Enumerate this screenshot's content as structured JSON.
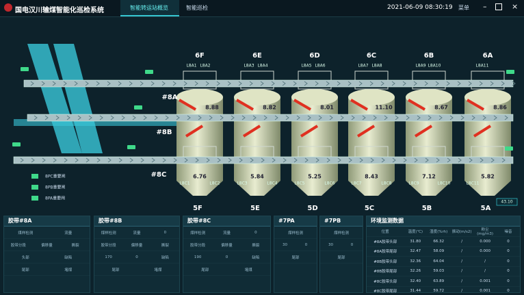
{
  "header": {
    "title": "国电汉川输煤智能化巡检系统",
    "tabs": [
      "智能转运站概览",
      "智能巡检"
    ],
    "datetime": "2021-06-09 08:30:19",
    "menu": "菜单"
  },
  "diagram": {
    "belts": [
      "#8A",
      "#8B",
      "#8C"
    ],
    "top_bins": [
      {
        "name": "6F",
        "labels": [
          "L8A1",
          "L8A2"
        ],
        "value": "8.88"
      },
      {
        "name": "6E",
        "labels": [
          "L8A3",
          "L8A4"
        ],
        "value": "8.82"
      },
      {
        "name": "6D",
        "labels": [
          "L8A5",
          "L8A6"
        ],
        "value": "8.01"
      },
      {
        "name": "6C",
        "labels": [
          "L8A7",
          "L8A8"
        ],
        "value": "11.10"
      },
      {
        "name": "6B",
        "labels": [
          "L8A9",
          "L8A10"
        ],
        "value": "8.67"
      },
      {
        "name": "6A",
        "labels": [
          "L8A11"
        ],
        "value": "8.86"
      }
    ],
    "bottom_bins": [
      {
        "name": "5F",
        "labels": [
          "L8C1",
          "L8C2"
        ],
        "value": "6.76"
      },
      {
        "name": "5E",
        "labels": [
          "L8C3",
          "L8C4"
        ],
        "value": "5.84"
      },
      {
        "name": "5D",
        "labels": [
          "L8C5",
          "L8C6"
        ],
        "value": "5.25"
      },
      {
        "name": "5C",
        "labels": [
          "L8C7",
          "L8C8"
        ],
        "value": "8.43"
      },
      {
        "name": "5B",
        "labels": [
          "L8C9",
          "L8C10"
        ],
        "value": "7.12"
      },
      {
        "name": "5A",
        "labels": [
          "L8C11"
        ],
        "value": "5.82"
      }
    ],
    "legend": [
      "8PC重要闸",
      "8PB重要闸",
      "8PA重要闸"
    ],
    "gauge": "43.10"
  },
  "panels": [
    {
      "title": "胶带#8A",
      "rows": [
        [
          "煤样检测",
          "流量"
        ],
        [
          "胶带分段",
          "偏移量",
          "撕裂"
        ],
        [
          "头部",
          "缺陷"
        ],
        [
          "尾部",
          "堵煤"
        ]
      ]
    },
    {
      "title": "胶带#8B",
      "rows": [
        [
          "煤样检测",
          "流量",
          "0"
        ],
        [
          "胶带分段",
          "偏移量",
          "撕裂"
        ],
        [
          "170",
          "0",
          "缺陷"
        ],
        [
          "尾部",
          "堵煤"
        ]
      ]
    },
    {
      "title": "胶带#8C",
      "rows": [
        [
          "煤样检测",
          "流量",
          "0"
        ],
        [
          "胶带分段",
          "偏移量",
          "撕裂"
        ],
        [
          "190",
          "0",
          "缺陷"
        ],
        [
          "尾部",
          "堵煤"
        ]
      ]
    },
    {
      "title": "#7PA",
      "rows": [
        [
          "煤样检测"
        ],
        [
          "30",
          "0"
        ],
        [
          "尾部"
        ]
      ]
    },
    {
      "title": "#7PB",
      "rows": [
        [
          "煤样检测"
        ],
        [
          "30",
          "0"
        ],
        [
          "尾部"
        ]
      ]
    }
  ],
  "environment": {
    "title": "环境监测数据",
    "headers": [
      "位置",
      "温度(℃)",
      "湿度(%rh)",
      "振动(m/s2)",
      "粉尘(mg/m3)",
      "噪音"
    ],
    "rows": [
      [
        "#8A胶带头部",
        "31.80",
        "66.32",
        "/",
        "0.000",
        "0"
      ],
      [
        "#8A胶带尾部",
        "32.47",
        "58.09",
        "/",
        "0.000",
        "0"
      ],
      [
        "#8B胶带头部",
        "32.36",
        "64.04",
        "/",
        "/",
        "0"
      ],
      [
        "#8B胶带尾部",
        "32.26",
        "59.03",
        "/",
        "/",
        "0"
      ],
      [
        "#8C胶带头部",
        "32.40",
        "63.89",
        "/",
        "0.001",
        "0"
      ],
      [
        "#8C胶带尾部",
        "31.44",
        "59.72",
        "/",
        "0.001",
        "0"
      ]
    ]
  }
}
